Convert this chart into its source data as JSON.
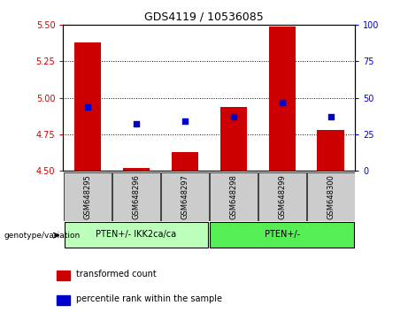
{
  "title": "GDS4119 / 10536085",
  "samples": [
    "GSM648295",
    "GSM648296",
    "GSM648297",
    "GSM648298",
    "GSM648299",
    "GSM648300"
  ],
  "bar_values": [
    5.38,
    4.52,
    4.63,
    4.94,
    5.49,
    4.78
  ],
  "bar_base": 4.5,
  "percentile_values": [
    4.94,
    4.82,
    4.84,
    4.87,
    4.97,
    4.87
  ],
  "ylim": [
    4.5,
    5.5
  ],
  "yticks_left": [
    4.5,
    4.75,
    5.0,
    5.25,
    5.5
  ],
  "yticks_right": [
    0,
    25,
    50,
    75,
    100
  ],
  "grid_values": [
    4.75,
    5.0,
    5.25
  ],
  "group1_label": "PTEN+/- IKK2ca/ca",
  "group2_label": "PTEN+/-",
  "bar_color": "#cc0000",
  "percentile_color": "#0000cc",
  "group1_bg": "#bbffbb",
  "group2_bg": "#55ee55",
  "sample_bg": "#cccccc",
  "legend_bar_label": "transformed count",
  "legend_pct_label": "percentile rank within the sample",
  "genotype_label": "genotype/variation",
  "title_fontsize": 9,
  "tick_fontsize": 7,
  "label_fontsize": 7
}
